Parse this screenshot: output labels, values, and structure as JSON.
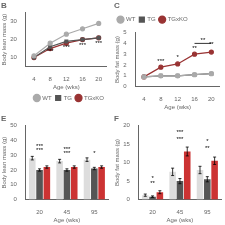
{
  "chart_data": [
    {
      "type": "line",
      "title": "B",
      "xlabel": "Age (wks)",
      "ylabel": "Body lean mass (g)",
      "x": [
        4,
        8,
        12,
        16,
        20
      ],
      "xlim": [
        2,
        22
      ],
      "xticks": [
        4,
        8,
        12,
        16,
        20
      ],
      "ylim": [
        5,
        35
      ],
      "yticks": [
        10,
        20,
        30
      ],
      "grid": false,
      "legend": "lower right",
      "series": [
        {
          "name": "WT",
          "color": "#aaaaaa",
          "marker": "circle",
          "values": [
            11,
            18,
            23,
            26,
            29
          ]
        },
        {
          "name": "TG",
          "color": "#555555",
          "marker": "square",
          "values": [
            10,
            16,
            19,
            20,
            21
          ]
        },
        {
          "name": "TGxKO",
          "color": "#993333",
          "marker": "circle",
          "values": [
            10,
            15,
            18,
            20,
            21
          ]
        }
      ],
      "annotations": [
        {
          "x": 8,
          "y": 12,
          "text": "***"
        },
        {
          "x": 12,
          "y": 14,
          "text": "***"
        },
        {
          "x": 16,
          "y": 15,
          "text": "***"
        },
        {
          "x": 20,
          "y": 16,
          "text": "***"
        }
      ]
    },
    {
      "type": "line",
      "title": "C",
      "xlabel": "Age (wks)",
      "ylabel": "Body fat mass (g)",
      "x": [
        4,
        8,
        12,
        16,
        20
      ],
      "xlim": [
        2,
        22
      ],
      "xticks": [
        4,
        8,
        12,
        16,
        20
      ],
      "ylim": [
        0,
        5
      ],
      "yticks": [
        0,
        1,
        2,
        3,
        4,
        5
      ],
      "grid": false,
      "legend": "upper left",
      "series": [
        {
          "name": "WT",
          "color": "#aaaaaa",
          "marker": "circle",
          "values": [
            0.9,
            1.0,
            1.0,
            1.1,
            1.2
          ]
        },
        {
          "name": "TG",
          "color": "#555555",
          "marker": "square",
          "values": [
            0.9,
            1.0,
            1.0,
            1.1,
            1.2
          ]
        },
        {
          "name": "TGxKO",
          "color": "#993333",
          "marker": "circle",
          "values": [
            0.9,
            1.8,
            2.1,
            3.0,
            3.2
          ]
        }
      ],
      "annotations": [
        {
          "x": 8,
          "y": 2.1,
          "text": "***"
        },
        {
          "x": 12,
          "y": 2.4,
          "text": "*"
        },
        {
          "x": 16,
          "y": 3.3,
          "text": "**"
        },
        {
          "x": 20,
          "y": 3.6,
          "text": "**"
        }
      ],
      "brackets": [
        {
          "x1": 16,
          "x2": 20,
          "y": 4.0,
          "text": "**"
        }
      ]
    },
    {
      "type": "bar",
      "title": "E",
      "xlabel": "Age (wks)",
      "ylabel": "Body lean mass (g)",
      "categories": [
        "20",
        "45",
        "95"
      ],
      "ylim": [
        0,
        50
      ],
      "yticks": [
        0,
        10,
        20,
        30,
        40,
        50
      ],
      "grid": false,
      "series": [
        {
          "name": "WT",
          "color": "#dddddd",
          "values": [
            28,
            26,
            27
          ],
          "errors": [
            1.2,
            1.2,
            1.2
          ]
        },
        {
          "name": "TG",
          "color": "#555555",
          "values": [
            20,
            20,
            21
          ],
          "errors": [
            0.8,
            0.8,
            0.8
          ]
        },
        {
          "name": "TGxKO",
          "color": "#cc3333",
          "values": [
            22,
            22,
            22
          ],
          "errors": [
            0.8,
            0.8,
            0.8
          ]
        }
      ],
      "annotations": [
        {
          "x": "20",
          "y": 31,
          "text": "***"
        },
        {
          "x": "20",
          "y": 34,
          "text": "***"
        },
        {
          "x": "45",
          "y": 29,
          "text": "***"
        },
        {
          "x": "45",
          "y": 32,
          "text": "***"
        },
        {
          "x": "95",
          "y": 29,
          "text": "*"
        }
      ]
    },
    {
      "type": "bar",
      "title": "F",
      "xlabel": "Age (wks)",
      "ylabel": "Body fat mass (g)",
      "categories": [
        "20",
        "45",
        "95"
      ],
      "ylim": [
        0,
        20
      ],
      "yticks": [
        0,
        5,
        10,
        15,
        20
      ],
      "grid": false,
      "series": [
        {
          "name": "WT",
          "color": "#dddddd",
          "values": [
            1.2,
            7.5,
            8.0
          ],
          "errors": [
            0.3,
            1.0,
            1.0
          ]
        },
        {
          "name": "TG",
          "color": "#555555",
          "values": [
            0.8,
            5.0,
            5.5
          ],
          "errors": [
            0.2,
            0.7,
            0.7
          ]
        },
        {
          "name": "TGxKO",
          "color": "#cc3333",
          "values": [
            2.0,
            13.0,
            10.5
          ],
          "errors": [
            0.4,
            1.2,
            1.0
          ]
        }
      ],
      "annotations": [
        {
          "x": "20",
          "y": 3.5,
          "text": "**"
        },
        {
          "x": "20",
          "y": 5.0,
          "text": "*"
        },
        {
          "x": "45",
          "y": 15.5,
          "text": "***"
        },
        {
          "x": "45",
          "y": 17.5,
          "text": "***"
        },
        {
          "x": "95",
          "y": 13.0,
          "text": "**"
        },
        {
          "x": "95",
          "y": 15.0,
          "text": "*"
        }
      ]
    }
  ]
}
